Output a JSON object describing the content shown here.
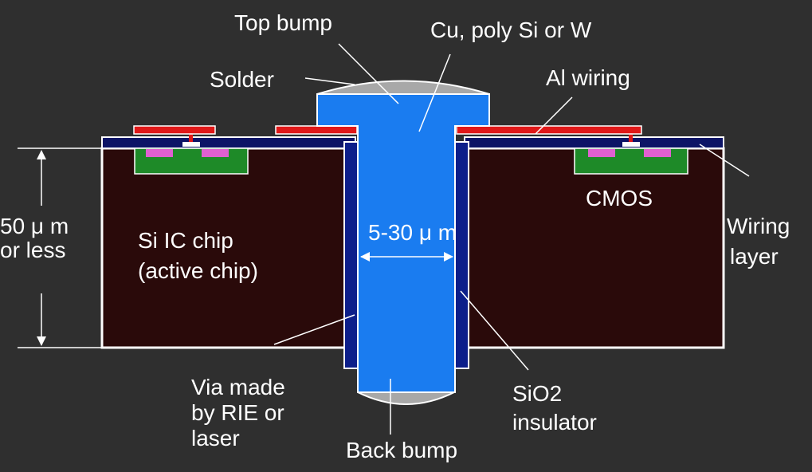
{
  "labels": {
    "top_bump": "Top bump",
    "cu_poly": "Cu, poly Si or W",
    "solder": "Solder",
    "al_wiring": "Al wiring",
    "thickness_1": "50 μ m",
    "thickness_2": "or less",
    "chip_1": "Si IC chip",
    "chip_2": "(active chip)",
    "via_width": "5-30 μ m",
    "cmos": "CMOS",
    "wiring_1": "Wiring",
    "wiring_2": "layer",
    "via_1": "Via made",
    "via_2": "by RIE or",
    "via_3": "laser",
    "back_bump": "Back bump",
    "sio2_1": "SiO2",
    "sio2_2": "insulator"
  },
  "colors": {
    "background": "#2f2f2f",
    "chip": "#2a0a0a",
    "via_metal": "#1a7cf0",
    "insulator": "#0c1e8a",
    "wiring_layer": "#0d1466",
    "al_wiring": "#e01818",
    "cmos_well": "#1e8a28",
    "cmos_diffusion": "#e060d0",
    "solder": "#a8a8a8"
  }
}
